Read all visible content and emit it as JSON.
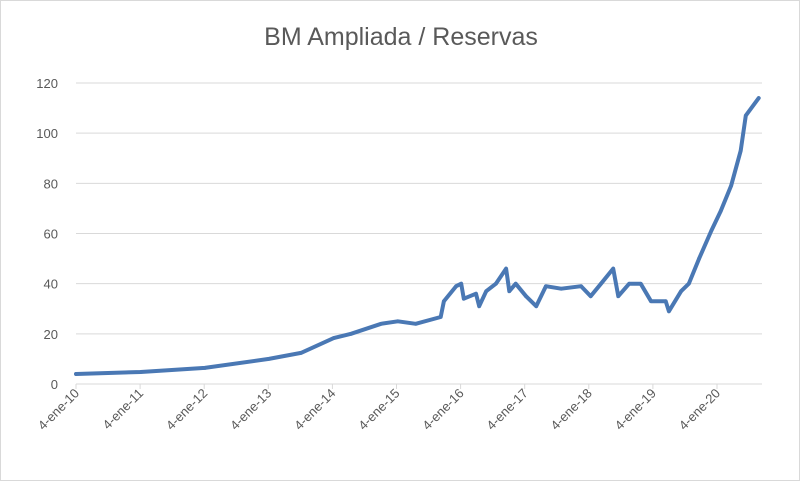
{
  "chart_data": {
    "type": "line",
    "title": "BM Ampliada / Reservas",
    "xlabel": "",
    "ylabel": "",
    "ylim": [
      0,
      120
    ],
    "yticks": [
      0,
      20,
      40,
      60,
      80,
      100,
      120
    ],
    "xlim": [
      0,
      10.7
    ],
    "xticks": [
      "4-ene-10",
      "4-ene-11",
      "4-ene-12",
      "4-ene-13",
      "4-ene-14",
      "4-ene-15",
      "4-ene-16",
      "4-ene-17",
      "4-ene-18",
      "4-ene-19",
      "4-ene-20"
    ],
    "grid": true,
    "color": "#4a78b4",
    "series": [
      {
        "name": "BM Ampliada / Reservas",
        "x": [
          0,
          1.01,
          2.01,
          3.01,
          3.51,
          4.02,
          4.29,
          4.76,
          5.02,
          5.3,
          5.69,
          5.74,
          5.93,
          6.01,
          6.05,
          6.24,
          6.29,
          6.4,
          6.55,
          6.71,
          6.76,
          6.86,
          7.02,
          7.18,
          7.33,
          7.57,
          7.88,
          8.03,
          8.19,
          8.38,
          8.46,
          8.63,
          8.81,
          8.97,
          9.2,
          9.25,
          9.44,
          9.56,
          9.72,
          9.91,
          10.06,
          10.22,
          10.37,
          10.45,
          10.65
        ],
        "y": [
          4,
          4.8,
          6.4,
          10,
          12.4,
          18.3,
          20,
          24,
          25,
          24,
          26.7,
          33,
          39,
          40,
          34,
          36,
          31,
          37,
          40,
          46,
          37,
          40,
          35,
          31,
          39,
          38,
          39,
          35,
          40,
          46,
          35,
          40,
          40,
          33,
          33,
          29,
          37,
          40,
          50,
          61,
          69,
          79,
          93,
          107,
          114
        ]
      }
    ]
  }
}
